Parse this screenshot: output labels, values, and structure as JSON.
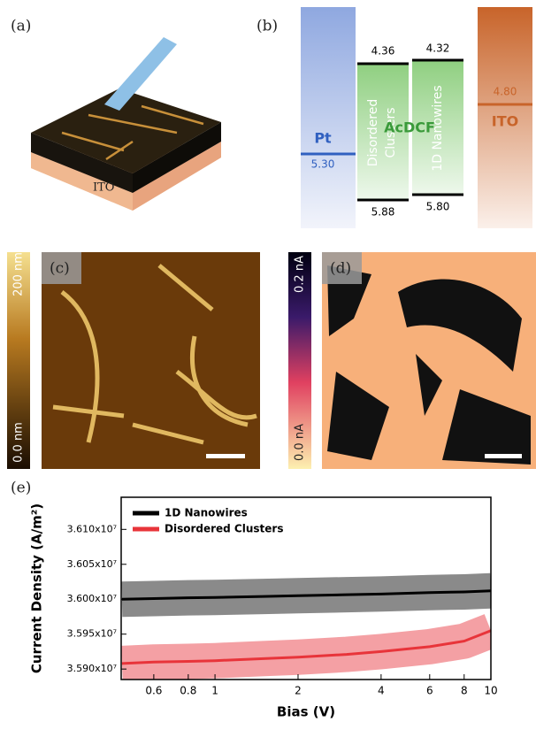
{
  "panels": {
    "a": {
      "label": "(a)",
      "substrate": "ITO"
    },
    "b": {
      "label": "(b)",
      "pt": "Pt",
      "pt_level": "5.30",
      "ito": "ITO",
      "ito_level": "4.80",
      "material": "AcDCF",
      "clusters_line1": "Disordered",
      "clusters_line2": "Clusters",
      "clusters_top": "4.36",
      "clusters_bottom": "5.88",
      "nanowires": "1D Nanowires",
      "nanowires_top": "4.32",
      "nanowires_bottom": "5.80"
    },
    "c": {
      "label": "(c)",
      "scale_max": "200 nm",
      "scale_min": "0.0 nm"
    },
    "d": {
      "label": "(d)",
      "scale_max": "0.2 nA",
      "scale_min": "0.0 nA"
    },
    "e": {
      "label": "(e)"
    }
  },
  "chart_data": {
    "type": "line",
    "x_label": "Bias (V)",
    "y_label": "Current Density (A/m²)",
    "x": [
      0.46,
      0.6,
      0.8,
      1,
      1.5,
      2,
      3,
      4,
      6,
      8,
      10
    ],
    "series": [
      {
        "name": "1D Nanowires",
        "color": "#000000",
        "band_color": "#8a8a8a",
        "values": [
          36000000,
          36001000,
          36002000,
          36002500,
          36004000,
          36005000,
          36006500,
          36007500,
          36009500,
          36010500,
          36012000
        ]
      },
      {
        "name": "Disordered Clusters",
        "color": "#e8343a",
        "band_color": "#f4a0a4",
        "values": [
          35908000,
          35910000,
          35911000,
          35912000,
          35915000,
          35917000,
          35921000,
          35925000,
          35932000,
          35940000,
          35955000
        ]
      }
    ],
    "log_x": true,
    "xlim": [
      0.457,
      10
    ],
    "xticks": [
      0.6,
      0.8,
      1,
      2,
      4,
      6,
      8,
      10
    ],
    "ylim": [
      35885000,
      36146000
    ],
    "yticks": [
      {
        "value": 35900000,
        "label": "3.590x10⁷"
      },
      {
        "value": 35950000,
        "label": "3.595x10⁷"
      },
      {
        "value": 36000000,
        "label": "3.600x10⁷"
      },
      {
        "value": 36050000,
        "label": "3.605x10⁷"
      },
      {
        "value": 36100000,
        "label": "3.610x10⁷"
      }
    ],
    "legend": "top-left"
  }
}
